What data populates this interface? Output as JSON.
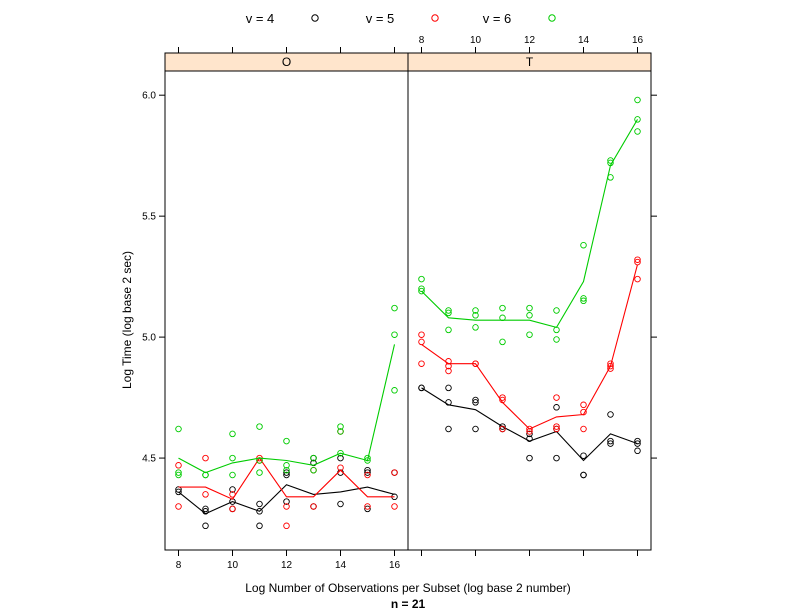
{
  "chart_data": {
    "type": "scatter",
    "xlabel": "Log Number of Observations per Subset (log base 2 number)",
    "ylabel": "Log Time (log base 2 sec)",
    "sub_label": "n = 21",
    "xlim": [
      7.5,
      16.5
    ],
    "ylim": [
      4.12,
      6.1
    ],
    "x_ticks": [
      8,
      10,
      12,
      14,
      16
    ],
    "y_ticks": [
      4.5,
      5.0,
      5.5,
      6.0
    ],
    "y_tick_labels": [
      "4.5",
      "5.0",
      "5.5",
      "6.0"
    ],
    "legend": [
      {
        "label": "v = 4",
        "color": "#000000"
      },
      {
        "label": "v = 5",
        "color": "#ff0000"
      },
      {
        "label": "v = 6",
        "color": "#00cc00"
      }
    ],
    "strip_color": "#ffe5cc",
    "panels": [
      {
        "strip": "O",
        "series": [
          {
            "color": "#000000",
            "line": [
              [
                8,
                4.36
              ],
              [
                9,
                4.27
              ],
              [
                10,
                4.32
              ],
              [
                11,
                4.28
              ],
              [
                12,
                4.39
              ],
              [
                13,
                4.35
              ],
              [
                14,
                4.36
              ],
              [
                15,
                4.38
              ],
              [
                16,
                4.35
              ]
            ],
            "points": [
              [
                8,
                4.37
              ],
              [
                8,
                4.36
              ],
              [
                9,
                4.29
              ],
              [
                9,
                4.22
              ],
              [
                9,
                4.28
              ],
              [
                10,
                4.37
              ],
              [
                10,
                4.32
              ],
              [
                10,
                4.29
              ],
              [
                11,
                4.31
              ],
              [
                11,
                4.22
              ],
              [
                11,
                4.28
              ],
              [
                12,
                4.43
              ],
              [
                12,
                4.32
              ],
              [
                12,
                4.44
              ],
              [
                13,
                4.5
              ],
              [
                13,
                4.48
              ],
              [
                13,
                4.3
              ],
              [
                14,
                4.5
              ],
              [
                14,
                4.44
              ],
              [
                14,
                4.31
              ],
              [
                15,
                4.45
              ],
              [
                15,
                4.44
              ],
              [
                15,
                4.29
              ],
              [
                16,
                4.34
              ],
              [
                16,
                4.44
              ]
            ]
          },
          {
            "color": "#ff0000",
            "line": [
              [
                8,
                4.38
              ],
              [
                9,
                4.38
              ],
              [
                10,
                4.33
              ],
              [
                11,
                4.5
              ],
              [
                12,
                4.34
              ],
              [
                13,
                4.34
              ],
              [
                14,
                4.45
              ],
              [
                15,
                4.34
              ],
              [
                16,
                4.34
              ]
            ],
            "points": [
              [
                8,
                4.47
              ],
              [
                8,
                4.3
              ],
              [
                9,
                4.5
              ],
              [
                9,
                4.35
              ],
              [
                10,
                4.29
              ],
              [
                10,
                4.35
              ],
              [
                11,
                4.5
              ],
              [
                11,
                4.49
              ],
              [
                12,
                4.22
              ],
              [
                12,
                4.3
              ],
              [
                13,
                4.45
              ],
              [
                13,
                4.3
              ],
              [
                14,
                4.61
              ],
              [
                14,
                4.46
              ],
              [
                15,
                4.3
              ],
              [
                15,
                4.43
              ],
              [
                16,
                4.44
              ],
              [
                16,
                4.3
              ]
            ]
          },
          {
            "color": "#00cc00",
            "line": [
              [
                8,
                4.5
              ],
              [
                9,
                4.44
              ],
              [
                10,
                4.48
              ],
              [
                11,
                4.5
              ],
              [
                12,
                4.49
              ],
              [
                13,
                4.47
              ],
              [
                14,
                4.52
              ],
              [
                15,
                4.49
              ],
              [
                16,
                4.97
              ]
            ],
            "points": [
              [
                8,
                4.62
              ],
              [
                8,
                4.44
              ],
              [
                8,
                4.43
              ],
              [
                9,
                4.43
              ],
              [
                9,
                4.43
              ],
              [
                10,
                4.6
              ],
              [
                10,
                4.5
              ],
              [
                10,
                4.43
              ],
              [
                11,
                4.63
              ],
              [
                11,
                4.49
              ],
              [
                11,
                4.44
              ],
              [
                12,
                4.57
              ],
              [
                12,
                4.47
              ],
              [
                12,
                4.45
              ],
              [
                13,
                4.5
              ],
              [
                13,
                4.45
              ],
              [
                14,
                4.63
              ],
              [
                14,
                4.61
              ],
              [
                14,
                4.52
              ],
              [
                15,
                4.5
              ],
              [
                15,
                4.49
              ],
              [
                16,
                5.12
              ],
              [
                16,
                5.01
              ],
              [
                16,
                4.78
              ]
            ]
          }
        ]
      },
      {
        "strip": "T",
        "series": [
          {
            "color": "#000000",
            "line": [
              [
                8,
                4.79
              ],
              [
                9,
                4.72
              ],
              [
                10,
                4.7
              ],
              [
                11,
                4.63
              ],
              [
                12,
                4.57
              ],
              [
                13,
                4.61
              ],
              [
                14,
                4.49
              ],
              [
                15,
                4.6
              ],
              [
                16,
                4.56
              ]
            ],
            "points": [
              [
                8,
                4.79
              ],
              [
                8,
                4.79
              ],
              [
                9,
                4.79
              ],
              [
                9,
                4.73
              ],
              [
                9,
                4.62
              ],
              [
                10,
                4.74
              ],
              [
                10,
                4.73
              ],
              [
                10,
                4.62
              ],
              [
                11,
                4.63
              ],
              [
                11,
                4.62
              ],
              [
                12,
                4.6
              ],
              [
                12,
                4.58
              ],
              [
                12,
                4.5
              ],
              [
                13,
                4.71
              ],
              [
                13,
                4.62
              ],
              [
                13,
                4.5
              ],
              [
                14,
                4.51
              ],
              [
                14,
                4.43
              ],
              [
                14,
                4.43
              ],
              [
                15,
                4.68
              ],
              [
                15,
                4.57
              ],
              [
                15,
                4.56
              ],
              [
                16,
                4.57
              ],
              [
                16,
                4.56
              ],
              [
                16,
                4.53
              ]
            ]
          },
          {
            "color": "#ff0000",
            "line": [
              [
                8,
                4.97
              ],
              [
                9,
                4.89
              ],
              [
                10,
                4.89
              ],
              [
                11,
                4.73
              ],
              [
                12,
                4.62
              ],
              [
                13,
                4.67
              ],
              [
                14,
                4.68
              ],
              [
                15,
                4.88
              ],
              [
                16,
                5.3
              ]
            ],
            "points": [
              [
                8,
                5.01
              ],
              [
                8,
                4.98
              ],
              [
                8,
                4.89
              ],
              [
                9,
                4.9
              ],
              [
                9,
                4.88
              ],
              [
                9,
                4.86
              ],
              [
                10,
                4.89
              ],
              [
                10,
                4.89
              ],
              [
                11,
                4.75
              ],
              [
                11,
                4.74
              ],
              [
                11,
                4.62
              ],
              [
                12,
                4.62
              ],
              [
                12,
                4.61
              ],
              [
                13,
                4.75
              ],
              [
                13,
                4.63
              ],
              [
                13,
                4.62
              ],
              [
                14,
                4.72
              ],
              [
                14,
                4.69
              ],
              [
                14,
                4.62
              ],
              [
                15,
                4.89
              ],
              [
                15,
                4.88
              ],
              [
                15,
                4.87
              ],
              [
                16,
                5.32
              ],
              [
                16,
                5.31
              ],
              [
                16,
                5.24
              ]
            ]
          },
          {
            "color": "#00cc00",
            "line": [
              [
                8,
                5.19
              ],
              [
                9,
                5.08
              ],
              [
                10,
                5.07
              ],
              [
                11,
                5.07
              ],
              [
                12,
                5.07
              ],
              [
                13,
                5.04
              ],
              [
                14,
                5.23
              ],
              [
                15,
                5.71
              ],
              [
                16,
                5.9
              ]
            ],
            "points": [
              [
                8,
                5.24
              ],
              [
                8,
                5.2
              ],
              [
                8,
                5.19
              ],
              [
                9,
                5.11
              ],
              [
                9,
                5.1
              ],
              [
                9,
                5.03
              ],
              [
                10,
                5.11
              ],
              [
                10,
                5.09
              ],
              [
                10,
                5.04
              ],
              [
                11,
                5.12
              ],
              [
                11,
                5.08
              ],
              [
                11,
                4.98
              ],
              [
                12,
                5.12
              ],
              [
                12,
                5.09
              ],
              [
                12,
                5.01
              ],
              [
                13,
                5.11
              ],
              [
                13,
                5.03
              ],
              [
                13,
                4.99
              ],
              [
                14,
                5.38
              ],
              [
                14,
                5.16
              ],
              [
                14,
                5.15
              ],
              [
                15,
                5.73
              ],
              [
                15,
                5.72
              ],
              [
                15,
                5.66
              ],
              [
                16,
                5.98
              ],
              [
                16,
                5.9
              ],
              [
                16,
                5.85
              ]
            ]
          }
        ]
      }
    ]
  }
}
